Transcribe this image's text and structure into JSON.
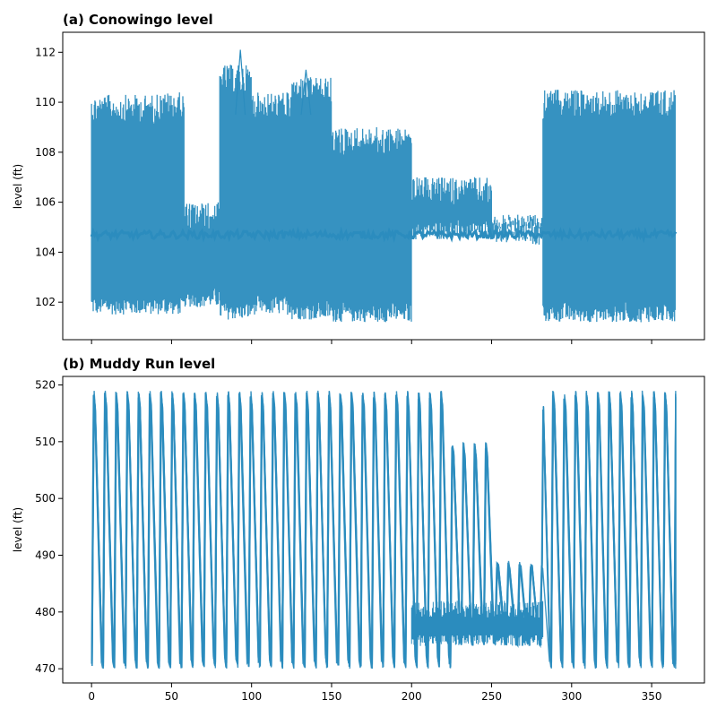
{
  "chart_data": [
    {
      "type": "line",
      "title": "(a) Conowingo level",
      "xlabel": "",
      "ylabel": "level (ft)",
      "xlim": [
        -18,
        383
      ],
      "ylim": [
        100.5,
        112.8
      ],
      "xticks": [
        0,
        50,
        100,
        150,
        200,
        250,
        300,
        350
      ],
      "xtick_labels_shown": false,
      "yticks": [
        102,
        104,
        106,
        108,
        110,
        112
      ],
      "series_color": "#2b8cbe",
      "x_range": [
        0,
        365
      ],
      "envelope_segments": [
        {
          "x": [
            0,
            40
          ],
          "min": 101.5,
          "max": 110.3
        },
        {
          "x": [
            40,
            58
          ],
          "min": 101.5,
          "max": 110.4
        },
        {
          "x": [
            58,
            80
          ],
          "min": 101.8,
          "max": 106.0
        },
        {
          "x": [
            80,
            100
          ],
          "min": 101.3,
          "max": 111.5
        },
        {
          "x": [
            100,
            125
          ],
          "min": 101.5,
          "max": 110.4
        },
        {
          "x": [
            125,
            150
          ],
          "min": 101.3,
          "max": 111.0
        },
        {
          "x": [
            150,
            200
          ],
          "min": 101.2,
          "max": 109.0
        },
        {
          "x": [
            200,
            250
          ],
          "min": 104.5,
          "max": 107.0
        },
        {
          "x": [
            250,
            282
          ],
          "min": 104.5,
          "max": 105.5
        },
        {
          "x": [
            282,
            365
          ],
          "min": 101.2,
          "max": 110.5
        }
      ],
      "peaks": [
        {
          "x": 93,
          "y": 112.1
        },
        {
          "x": 134,
          "y": 111.3
        }
      ]
    },
    {
      "type": "line",
      "title": "(b) Muddy Run level",
      "xlabel": "",
      "ylabel": "level (ft)",
      "xlim": [
        -18,
        383
      ],
      "ylim": [
        467.5,
        521.5
      ],
      "xticks": [
        0,
        50,
        100,
        150,
        200,
        250,
        300,
        350
      ],
      "xtick_labels_shown": true,
      "yticks": [
        470,
        480,
        490,
        500,
        510,
        520
      ],
      "series_color": "#2b8cbe",
      "x_range": [
        0,
        365
      ],
      "cycle_period_days": 7,
      "envelope_segments": [
        {
          "x": [
            0,
            225
          ],
          "min": 470,
          "max": 519
        },
        {
          "x": [
            225,
            250
          ],
          "min": 474,
          "max": 510
        },
        {
          "x": [
            250,
            282
          ],
          "min": 474,
          "max": 489
        },
        {
          "x": [
            282,
            365
          ],
          "min": 470,
          "max": 519
        }
      ]
    }
  ]
}
